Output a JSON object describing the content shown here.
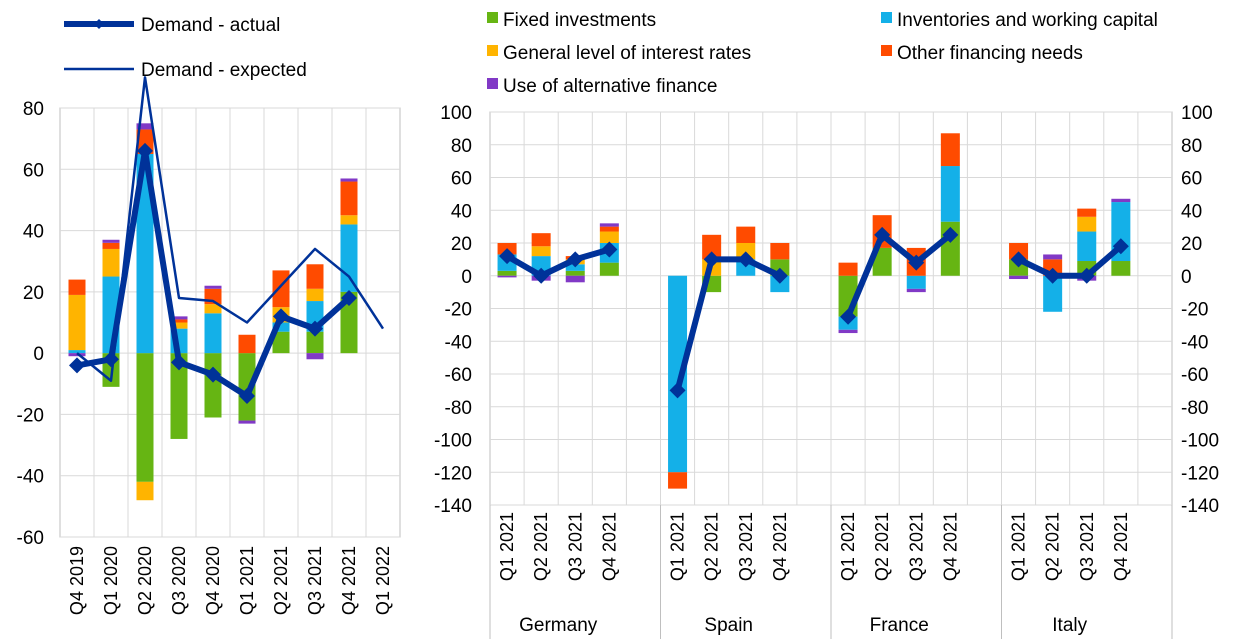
{
  "colors": {
    "fixed": "#66b513",
    "inventories": "#14b0e8",
    "interest": "#ffb400",
    "other": "#ff4b00",
    "alternative": "#8139c6",
    "line": "#003299",
    "grid": "#d9d9d9",
    "axis": "#bfbfbf"
  },
  "legend": {
    "left": [
      {
        "key": "actual",
        "label": "Demand - actual"
      },
      {
        "key": "expected",
        "label": "Demand - expected"
      }
    ],
    "right": [
      {
        "key": "fixed",
        "label": "Fixed investments"
      },
      {
        "key": "inventories",
        "label": "Inventories and working capital"
      },
      {
        "key": "interest",
        "label": "General level of interest rates"
      },
      {
        "key": "other",
        "label": "Other financing needs"
      },
      {
        "key": "alternative",
        "label": "Use of alternative finance"
      }
    ]
  },
  "chart_data": [
    {
      "type": "bar",
      "stacked": true,
      "categories": [
        "Q4 2019",
        "Q1 2020",
        "Q2 2020",
        "Q3 2020",
        "Q4 2020",
        "Q1 2021",
        "Q2 2021",
        "Q3 2021",
        "Q4 2021",
        "Q1 2022"
      ],
      "ylim": [
        -60,
        80
      ],
      "yticks": [
        "-60",
        "-40",
        "-20",
        "0",
        "20",
        "40",
        "60",
        "80"
      ],
      "grid": true,
      "series": [
        {
          "key": "fixed",
          "values": [
            0,
            -11,
            -42,
            -28,
            -21,
            -22,
            7,
            7,
            20,
            null
          ]
        },
        {
          "key": "inventories",
          "values": [
            1,
            25,
            65,
            8,
            13,
            0,
            3,
            10,
            22,
            null
          ]
        },
        {
          "key": "interest",
          "values": [
            18,
            9,
            -6,
            2,
            3,
            0,
            5,
            4,
            3,
            null
          ]
        },
        {
          "key": "other",
          "values": [
            5,
            2,
            8,
            1,
            5,
            6,
            12,
            8,
            11,
            null
          ]
        },
        {
          "key": "alternative",
          "values": [
            -1,
            1,
            2,
            1,
            1,
            -1,
            0,
            -2,
            1,
            null
          ]
        }
      ],
      "lines": [
        {
          "key": "actual",
          "values": [
            -4,
            -2,
            66,
            -3,
            -7,
            -14,
            12,
            8,
            18,
            null
          ]
        },
        {
          "key": "expected",
          "values": [
            0,
            -9,
            90,
            18,
            17,
            10,
            22,
            34,
            25,
            8
          ]
        }
      ]
    },
    {
      "type": "bar",
      "stacked": true,
      "ylim": [
        -140,
        100
      ],
      "yticks": [
        "-140",
        "-120",
        "-100",
        "-80",
        "-60",
        "-40",
        "-20",
        "0",
        "20",
        "40",
        "60",
        "80",
        "100"
      ],
      "grid": true,
      "groups": [
        {
          "name": "Germany",
          "categories": [
            "Q1 2021",
            "Q2 2021",
            "Q3 2021",
            "Q4 2021"
          ],
          "series": [
            {
              "key": "fixed",
              "values": [
                3,
                0,
                3,
                8
              ]
            },
            {
              "key": "inventories",
              "values": [
                10,
                12,
                4,
                12
              ]
            },
            {
              "key": "interest",
              "values": [
                0,
                6,
                3,
                7
              ]
            },
            {
              "key": "other",
              "values": [
                7,
                8,
                2,
                3
              ]
            },
            {
              "key": "alternative",
              "values": [
                -1,
                -3,
                -4,
                2
              ]
            }
          ],
          "actual": [
            12,
            0,
            10,
            16
          ]
        },
        {
          "name": "Spain",
          "categories": [
            "Q1 2021",
            "Q2 2021",
            "Q3 2021",
            "Q4 2021"
          ],
          "series": [
            {
              "key": "fixed",
              "values": [
                0,
                -10,
                0,
                10
              ]
            },
            {
              "key": "inventories",
              "values": [
                -120,
                0,
                10,
                -10
              ]
            },
            {
              "key": "interest",
              "values": [
                0,
                10,
                10,
                0
              ]
            },
            {
              "key": "other",
              "values": [
                -10,
                15,
                10,
                10
              ]
            },
            {
              "key": "alternative",
              "values": [
                0,
                0,
                0,
                0
              ]
            }
          ],
          "actual": [
            -70,
            10,
            10,
            0
          ]
        },
        {
          "name": "France",
          "categories": [
            "Q1 2021",
            "Q2 2021",
            "Q3 2021",
            "Q4 2021"
          ],
          "series": [
            {
              "key": "fixed",
              "values": [
                -25,
                17,
                0,
                33
              ]
            },
            {
              "key": "inventories",
              "values": [
                -8,
                0,
                -8,
                34
              ]
            },
            {
              "key": "interest",
              "values": [
                0,
                0,
                0,
                0
              ]
            },
            {
              "key": "other",
              "values": [
                8,
                20,
                17,
                20
              ]
            },
            {
              "key": "alternative",
              "values": [
                -2,
                0,
                -2,
                0
              ]
            }
          ],
          "actual": [
            -25,
            25,
            8,
            25
          ]
        },
        {
          "name": "Italy",
          "categories": [
            "Q1 2021",
            "Q2 2021",
            "Q3 2021",
            "Q4 2021"
          ],
          "series": [
            {
              "key": "fixed",
              "values": [
                10,
                0,
                9,
                9
              ]
            },
            {
              "key": "inventories",
              "values": [
                0,
                -22,
                18,
                36
              ]
            },
            {
              "key": "interest",
              "values": [
                0,
                0,
                9,
                0
              ]
            },
            {
              "key": "other",
              "values": [
                10,
                10,
                5,
                0
              ]
            },
            {
              "key": "alternative",
              "values": [
                -2,
                3,
                -3,
                2
              ]
            }
          ],
          "actual": [
            10,
            0,
            0,
            18
          ]
        }
      ]
    }
  ]
}
